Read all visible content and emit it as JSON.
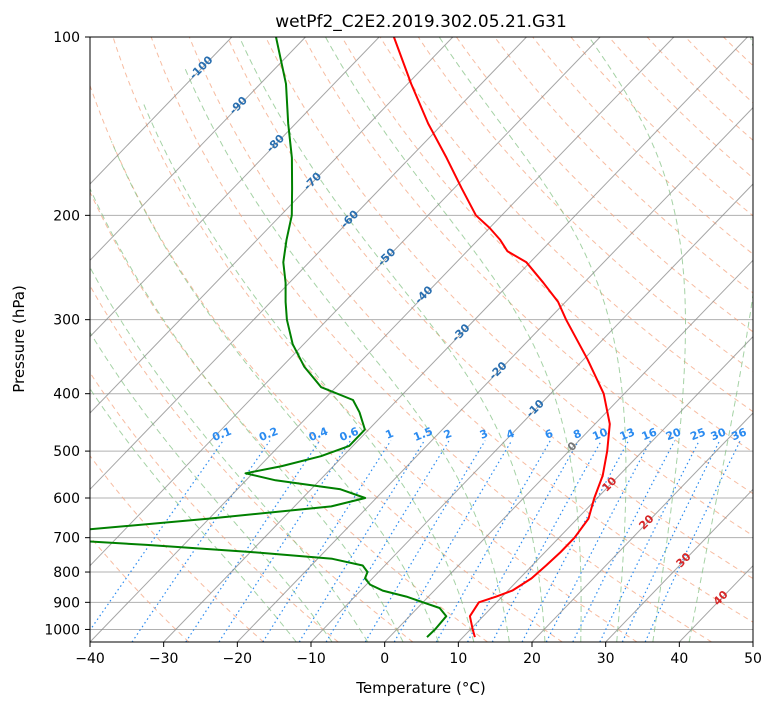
{
  "chart_data": {
    "type": "line",
    "title": "wetPf2_C2E2.2019.302.05.21.G31",
    "xlabel": "Temperature (°C)",
    "ylabel": "Pressure (hPa)",
    "xlim": [
      -40,
      50
    ],
    "ylim": [
      1050,
      100
    ],
    "y_scale": "log",
    "grid": true,
    "x_ticks": [
      -40,
      -30,
      -20,
      -10,
      0,
      10,
      20,
      30,
      40,
      50
    ],
    "y_ticks": [
      100,
      200,
      300,
      400,
      500,
      600,
      700,
      800,
      900,
      1000
    ],
    "colors": {
      "temperature": "#ff0000",
      "dewpoint": "#008000",
      "dry_adiabat": "#f4a582",
      "moist_adiabat": "#7fbf7f",
      "mixing_ratio": "#2b8bf0",
      "isotherm": "#888888",
      "isotherm_label_cold": "#2a6fb0",
      "isotherm_label_warm": "#d62728"
    },
    "series": [
      {
        "key": "temperature",
        "p": [
          1030,
          1000,
          950,
          900,
          880,
          860,
          820,
          780,
          740,
          700,
          650,
          600,
          550,
          500,
          450,
          400,
          350,
          300,
          280,
          260,
          240,
          230,
          220,
          210,
          200,
          180,
          160,
          140,
          120,
          100
        ],
        "t": [
          11.6,
          10.3,
          8.2,
          7.6,
          9.2,
          10.6,
          11.6,
          11.9,
          12.1,
          12.1,
          11.5,
          9.6,
          7.8,
          5.2,
          2.0,
          -2.8,
          -9.5,
          -17.6,
          -21.0,
          -25.5,
          -30.5,
          -34.5,
          -37.0,
          -40.0,
          -43.5,
          -49.0,
          -55.0,
          -62.0,
          -69.5,
          -78.0
        ]
      },
      {
        "key": "dewpoint",
        "p": [
          1030,
          1000,
          950,
          920,
          900,
          880,
          860,
          840,
          820,
          800,
          780,
          760,
          740,
          720,
          700,
          680,
          650,
          620,
          600,
          580,
          560,
          545,
          530,
          510,
          490,
          460,
          430,
          410,
          390,
          360,
          330,
          300,
          280,
          260,
          240,
          220,
          200,
          180,
          160,
          140,
          120,
          100
        ],
        "t": [
          5.1,
          5.2,
          5.0,
          3.0,
          0.0,
          -3.0,
          -7.0,
          -9.5,
          -11.0,
          -11.5,
          -13.0,
          -18.0,
          -30.0,
          -45.0,
          -62.0,
          -56.0,
          -40.0,
          -25.0,
          -21.5,
          -26.0,
          -36.0,
          -41.0,
          -37.0,
          -33.0,
          -30.5,
          -30.5,
          -33.5,
          -36.0,
          -42.0,
          -47.0,
          -51.5,
          -55.5,
          -58.0,
          -60.5,
          -63.5,
          -66.0,
          -68.5,
          -72.0,
          -76.0,
          -81.0,
          -86.5,
          -94.0
        ]
      }
    ],
    "isotherm_labels": [
      "-100",
      "-90",
      "-80",
      "-70",
      "-60",
      "-50",
      "-40",
      "-30",
      "-20",
      "-10",
      "0",
      "10",
      "20",
      "30",
      "40"
    ],
    "isotherm_values": [
      -100,
      -90,
      -80,
      -70,
      -60,
      -50,
      -40,
      -30,
      -20,
      -10,
      0,
      10,
      20,
      30,
      40
    ],
    "mixing_ratio_labels": [
      "0.1",
      "0.2",
      "0.4",
      "0.6",
      "1",
      "1.5",
      "2",
      "3",
      "4",
      "6",
      "8",
      "10",
      "13",
      "16",
      "20",
      "25",
      "30",
      "36"
    ],
    "mixing_ratio_values": [
      0.1,
      0.2,
      0.4,
      0.6,
      1,
      1.5,
      2,
      3,
      4,
      6,
      8,
      10,
      13,
      16,
      20,
      25,
      30,
      36
    ]
  }
}
